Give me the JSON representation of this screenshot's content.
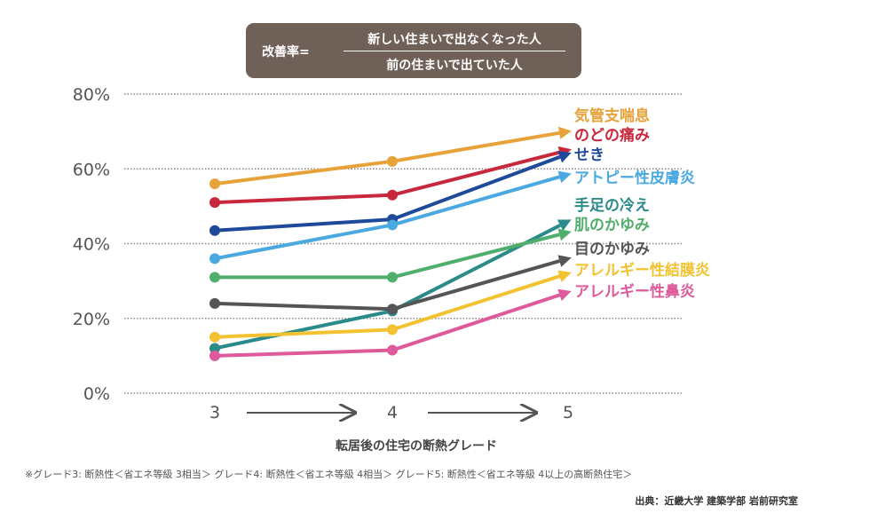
{
  "formula": {
    "label": "改善率=",
    "numerator": "新しい住まいで出なくなった人",
    "denominator": "前の住まいで出ていた人"
  },
  "chart_data": {
    "type": "line",
    "x": [
      "3",
      "4",
      "5"
    ],
    "xlabel": "転居後の住宅の断熱グレード",
    "ylabel": "",
    "ylim": [
      0,
      80
    ],
    "yticks": [
      "0%",
      "20%",
      "40%",
      "60%",
      "80%"
    ],
    "series": [
      {
        "name": "気管支喘息",
        "values": [
          56,
          62,
          70
        ],
        "color": "#e8a23a"
      },
      {
        "name": "のどの痛み",
        "values": [
          51,
          53,
          65
        ],
        "color": "#c8283c"
      },
      {
        "name": "せき",
        "values": [
          43.5,
          46.5,
          64
        ],
        "color": "#1f4a9a"
      },
      {
        "name": "アトピー性皮膚炎",
        "values": [
          36,
          45,
          58.5
        ],
        "color": "#4aa9e0"
      },
      {
        "name": "手足の冷え",
        "values": [
          12,
          22,
          46
        ],
        "color": "#2b8a8a"
      },
      {
        "name": "肌のかゆみ",
        "values": [
          31,
          31,
          43
        ],
        "color": "#4fae6b"
      },
      {
        "name": "目のかゆみ",
        "values": [
          24,
          22.5,
          36
        ],
        "color": "#555555"
      },
      {
        "name": "アレルギー性結膜炎",
        "values": [
          15,
          17,
          32
        ],
        "color": "#f2c230"
      },
      {
        "name": "アレルギー性鼻炎",
        "values": [
          10,
          11.5,
          27
        ],
        "color": "#de5a9a"
      }
    ]
  },
  "footnote": "※グレード3: 断熱性＜省エネ等級 3相当＞ グレード4: 断熱性＜省エネ等級 4相当＞ グレード5: 断熱性＜省エネ等級 4以上の高断熱住宅＞",
  "source": "出典：近畿大学 建築学部 岩前研究室"
}
